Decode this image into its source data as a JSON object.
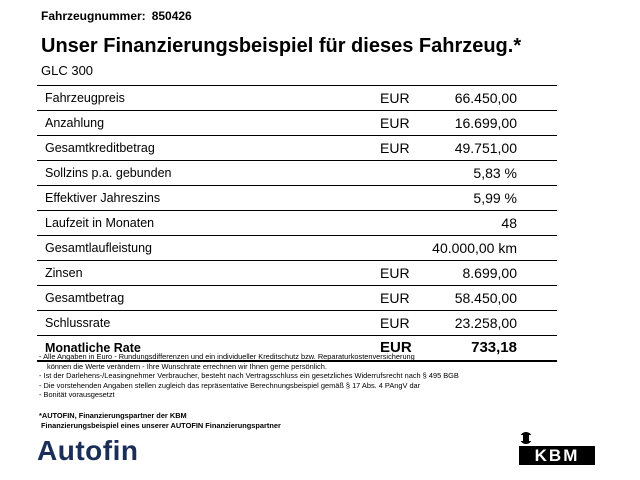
{
  "header": {
    "vehicle_number_label": "Fahrzeugnummer:",
    "vehicle_number": "850426",
    "title": "Unser Finanzierungsbeispiel für dieses Fahrzeug.*",
    "model": "GLC 300"
  },
  "rows": [
    {
      "label": "Fahrzeugpreis",
      "currency": "EUR",
      "value": "66.450,00"
    },
    {
      "label": "Anzahlung",
      "currency": "EUR",
      "value": "16.699,00"
    },
    {
      "label": "Gesamtkreditbetrag",
      "currency": "EUR",
      "value": "49.751,00"
    },
    {
      "label": "Sollzins p.a. gebunden",
      "currency": "",
      "value": "5,83 %"
    },
    {
      "label": "Effektiver Jahreszins",
      "currency": "",
      "value": "5,99 %"
    },
    {
      "label": "Laufzeit in Monaten",
      "currency": "",
      "value": "48"
    },
    {
      "label": "Gesamtlaufleistung",
      "currency": "",
      "value": "40.000,00 km"
    },
    {
      "label": "Zinsen",
      "currency": "EUR",
      "value": "8.699,00"
    },
    {
      "label": "Gesamtbetrag",
      "currency": "EUR",
      "value": "58.450,00"
    },
    {
      "label": "Schlussrate",
      "currency": "EUR",
      "value": "23.258,00"
    },
    {
      "label": "Monatliche Rate",
      "currency": "EUR",
      "value": "733,18"
    }
  ],
  "notes": [
    "- Alle Angaben in Euro - Rundungsdifferenzen und ein individueller Kreditschutz bzw. Reparaturkostenversicherung",
    "können die Werte verändern - Ihre Wunschrate errechnen wir Ihnen gerne persönlich.",
    "- Ist der Darlehens-/Leasingnehmer Verbraucher, besteht nach Vertragsschluss ein gesetzliches Widerrufsrecht nach § 495 BGB",
    "- Die vorstehenden Angaben stellen zugleich das repräsentative Berechnungsbeispiel gemäß § 17 Abs. 4 PAngV dar",
    "- Bonität vorausgesetzt"
  ],
  "partner": {
    "line1": "*AUTOFIN, Finanzierungspartner der KBM",
    "line2": "Finanzierungsbeispiel eines unserer AUTOFIN Finanzierungspartner"
  },
  "logos": {
    "autofin": "Autofin",
    "kbm": "KBM",
    "autofin_color": "#1b2e57"
  }
}
